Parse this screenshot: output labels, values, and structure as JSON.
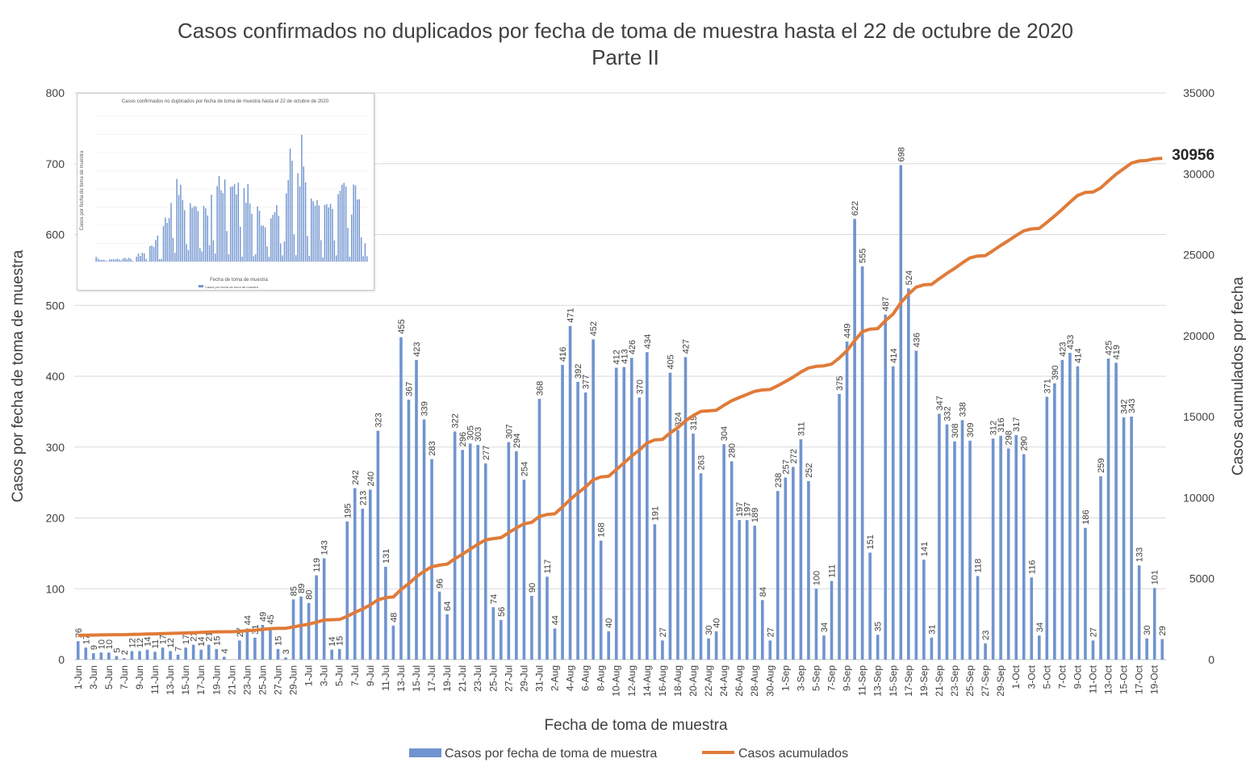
{
  "chart_data": {
    "type": "bar",
    "title": "Casos confirmados no duplicados por fecha de toma de muestra hasta el 22 de octubre de 2020",
    "subtitle": "Parte II",
    "xlabel": "Fecha de toma de muestra",
    "ylabel": "Casos por fecha de toma de muestra",
    "y2label": "Casos acumulados por fecha",
    "ylim": [
      0,
      800
    ],
    "y2lim": [
      0,
      35000
    ],
    "yticks": [
      0,
      100,
      200,
      300,
      400,
      500,
      600,
      700,
      800
    ],
    "y2ticks": [
      0,
      5000,
      10000,
      15000,
      20000,
      25000,
      30000,
      35000
    ],
    "grid": true,
    "legend_position": "bottom",
    "start_date": "2020-06-01",
    "categories": [
      "1-Jun",
      "2-Jun",
      "3-Jun",
      "4-Jun",
      "5-Jun",
      "6-Jun",
      "7-Jun",
      "8-Jun",
      "9-Jun",
      "10-Jun",
      "11-Jun",
      "12-Jun",
      "13-Jun",
      "14-Jun",
      "15-Jun",
      "16-Jun",
      "17-Jun",
      "18-Jun",
      "19-Jun",
      "20-Jun",
      "21-Jun",
      "22-Jun",
      "23-Jun",
      "24-Jun",
      "25-Jun",
      "26-Jun",
      "27-Jun",
      "28-Jun",
      "29-Jun",
      "30-Jun",
      "1-Jul",
      "2-Jul",
      "3-Jul",
      "4-Jul",
      "5-Jul",
      "6-Jul",
      "7-Jul",
      "8-Jul",
      "9-Jul",
      "10-Jul",
      "11-Jul",
      "12-Jul",
      "13-Jul",
      "14-Jul",
      "15-Jul",
      "16-Jul",
      "17-Jul",
      "18-Jul",
      "19-Jul",
      "20-Jul",
      "21-Jul",
      "22-Jul",
      "23-Jul",
      "24-Jul",
      "25-Jul",
      "26-Jul",
      "27-Jul",
      "28-Jul",
      "29-Jul",
      "30-Jul",
      "31-Jul",
      "1-Aug",
      "2-Aug",
      "3-Aug",
      "4-Aug",
      "5-Aug",
      "6-Aug",
      "7-Aug",
      "8-Aug",
      "9-Aug",
      "10-Aug",
      "11-Aug",
      "12-Aug",
      "13-Aug",
      "14-Aug",
      "15-Aug",
      "16-Aug",
      "17-Aug",
      "18-Aug",
      "19-Aug",
      "20-Aug",
      "21-Aug",
      "22-Aug",
      "23-Aug",
      "24-Aug",
      "25-Aug",
      "26-Aug",
      "27-Aug",
      "28-Aug",
      "29-Aug",
      "30-Aug",
      "31-Aug",
      "1-Sep",
      "2-Sep",
      "3-Sep",
      "4-Sep",
      "5-Sep",
      "6-Sep",
      "7-Sep",
      "8-Sep",
      "9-Sep",
      "10-Sep",
      "11-Sep",
      "12-Sep",
      "13-Sep",
      "14-Sep",
      "15-Sep",
      "16-Sep",
      "17-Sep",
      "18-Sep",
      "19-Sep",
      "20-Sep",
      "21-Sep",
      "22-Sep",
      "23-Sep",
      "24-Sep",
      "25-Sep",
      "26-Sep",
      "27-Sep",
      "28-Sep",
      "29-Sep",
      "30-Sep",
      "1-Oct",
      "2-Oct",
      "3-Oct",
      "4-Oct",
      "5-Oct",
      "6-Oct",
      "7-Oct",
      "8-Oct",
      "9-Oct",
      "10-Oct",
      "11-Oct",
      "12-Oct",
      "13-Oct",
      "14-Oct",
      "15-Oct",
      "16-Oct",
      "17-Oct",
      "18-Oct",
      "19-Oct",
      "20-Oct"
    ],
    "series": [
      {
        "name": "Casos por fecha de toma de muestra",
        "type": "bar",
        "color": "#7094cf",
        "values": [
          26,
          17,
          9,
          10,
          10,
          5,
          2,
          12,
          12,
          14,
          11,
          17,
          12,
          7,
          17,
          21,
          14,
          21,
          15,
          4,
          0,
          27,
          44,
          31,
          49,
          45,
          15,
          3,
          85,
          89,
          80,
          119,
          143,
          14,
          15,
          195,
          242,
          213,
          240,
          323,
          131,
          48,
          455,
          367,
          423,
          339,
          283,
          96,
          64,
          322,
          296,
          305,
          303,
          277,
          74,
          56,
          307,
          294,
          254,
          90,
          368,
          117,
          44,
          416,
          471,
          392,
          377,
          452,
          168,
          40,
          412,
          413,
          426,
          370,
          434,
          191,
          27,
          405,
          324,
          427,
          319,
          263,
          30,
          40,
          304,
          280,
          197,
          197,
          189,
          84,
          27,
          238,
          257,
          272,
          311,
          252,
          100,
          34,
          111,
          375,
          449,
          622,
          555,
          151,
          35,
          487,
          414,
          698,
          524,
          436,
          141,
          31,
          347,
          332,
          308,
          338,
          309,
          118,
          23,
          312,
          316,
          298,
          317,
          290,
          116,
          34,
          371,
          390,
          423,
          433,
          414,
          186,
          27,
          259,
          425,
          419,
          342,
          343,
          133,
          30,
          101,
          29
        ]
      },
      {
        "name": "Casos acumulados",
        "type": "line",
        "color": "#e07b39",
        "last_value_label": "30956"
      }
    ]
  }
}
